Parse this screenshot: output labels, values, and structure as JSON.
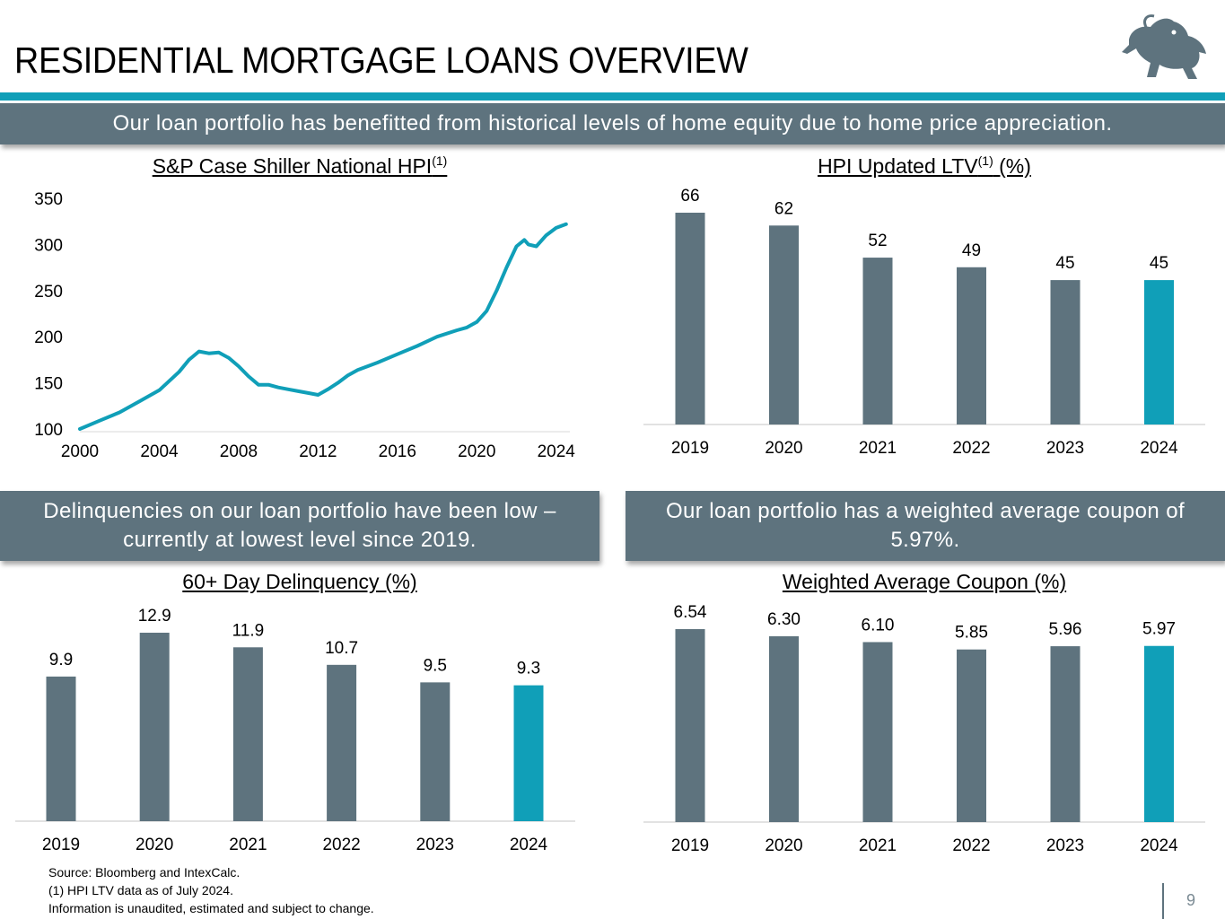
{
  "page": {
    "title": "RESIDENTIAL MORTGAGE LOANS OVERVIEW",
    "page_number": "9",
    "logo": "lion-logo"
  },
  "banners": {
    "top": "Our loan portfolio has benefitted from historical levels of home equity due to home price appreciation.",
    "left": "Delinquencies on our loan portfolio have been low – currently at lowest level since 2019.",
    "right": "Our loan portfolio has a weighted average coupon of 5.97%."
  },
  "footnotes": {
    "source": "Source:  Bloomberg and IntexCalc.",
    "note1": "(1) HPI LTV data as of July 2024.",
    "note2": "Information is unaudited, estimated and subject to change."
  },
  "colors": {
    "accent": "#109fb8",
    "bar": "#5e737e",
    "banner": "#5e737e"
  },
  "chart_data": [
    {
      "type": "line",
      "title": "S&P Case Shiller National HPI",
      "title_sup": "(1)",
      "xlim": [
        2000,
        2024.6
      ],
      "ylim": [
        100,
        350
      ],
      "x_ticks": [
        2000,
        2004,
        2008,
        2012,
        2016,
        2020,
        2024
      ],
      "y_ticks": [
        100,
        150,
        200,
        250,
        300,
        350
      ],
      "grid": false,
      "series": [
        {
          "x": [
            2000,
            2001,
            2002,
            2003,
            2004,
            2005,
            2005.5,
            2006,
            2006.5,
            2007,
            2007.5,
            2008,
            2008.5,
            2009,
            2009.5,
            2010,
            2010.5,
            2011,
            2011.5,
            2012,
            2012.5,
            2013,
            2013.5,
            2014,
            2015,
            2016,
            2017,
            2018,
            2019,
            2019.5,
            2020,
            2020.5,
            2021,
            2021.5,
            2022,
            2022.4,
            2022.6,
            2023,
            2023.5,
            2024,
            2024.5
          ],
          "y": [
            100,
            109,
            118,
            130,
            142,
            162,
            175,
            184,
            182,
            183,
            177,
            168,
            157,
            148,
            148,
            145,
            143,
            141,
            139,
            137,
            143,
            150,
            158,
            164,
            172,
            181,
            190,
            200,
            207,
            210,
            216,
            228,
            250,
            275,
            298,
            305,
            300,
            298,
            310,
            318,
            322
          ]
        }
      ]
    },
    {
      "type": "bar",
      "title": "HPI Updated LTV",
      "title_sup": "(1)",
      "title_suffix": " (%)",
      "categories": [
        "2019",
        "2020",
        "2021",
        "2022",
        "2023",
        "2024"
      ],
      "values": [
        66,
        62,
        52,
        49,
        45,
        45
      ],
      "labels": [
        "66",
        "62",
        "52",
        "49",
        "45",
        "45"
      ],
      "ylim": [
        0,
        66
      ],
      "highlight_last": true
    },
    {
      "type": "bar",
      "title": "60+ Day Delinquency (%)",
      "categories": [
        "2019",
        "2020",
        "2021",
        "2022",
        "2023",
        "2024"
      ],
      "values": [
        9.9,
        12.9,
        11.9,
        10.7,
        9.5,
        9.3
      ],
      "labels": [
        "9.9",
        "12.9",
        "11.9",
        "10.7",
        "9.5",
        "9.3"
      ],
      "ylim": [
        0,
        12.9
      ],
      "highlight_last": true
    },
    {
      "type": "bar",
      "title": "Weighted Average Coupon (%)",
      "categories": [
        "2019",
        "2020",
        "2021",
        "2022",
        "2023",
        "2024"
      ],
      "values": [
        6.54,
        6.3,
        6.1,
        5.85,
        5.96,
        5.97
      ],
      "labels": [
        "6.54",
        "6.30",
        "6.10",
        "5.85",
        "5.96",
        "5.97"
      ],
      "ylim": [
        0,
        6.54
      ],
      "highlight_last": true
    }
  ]
}
